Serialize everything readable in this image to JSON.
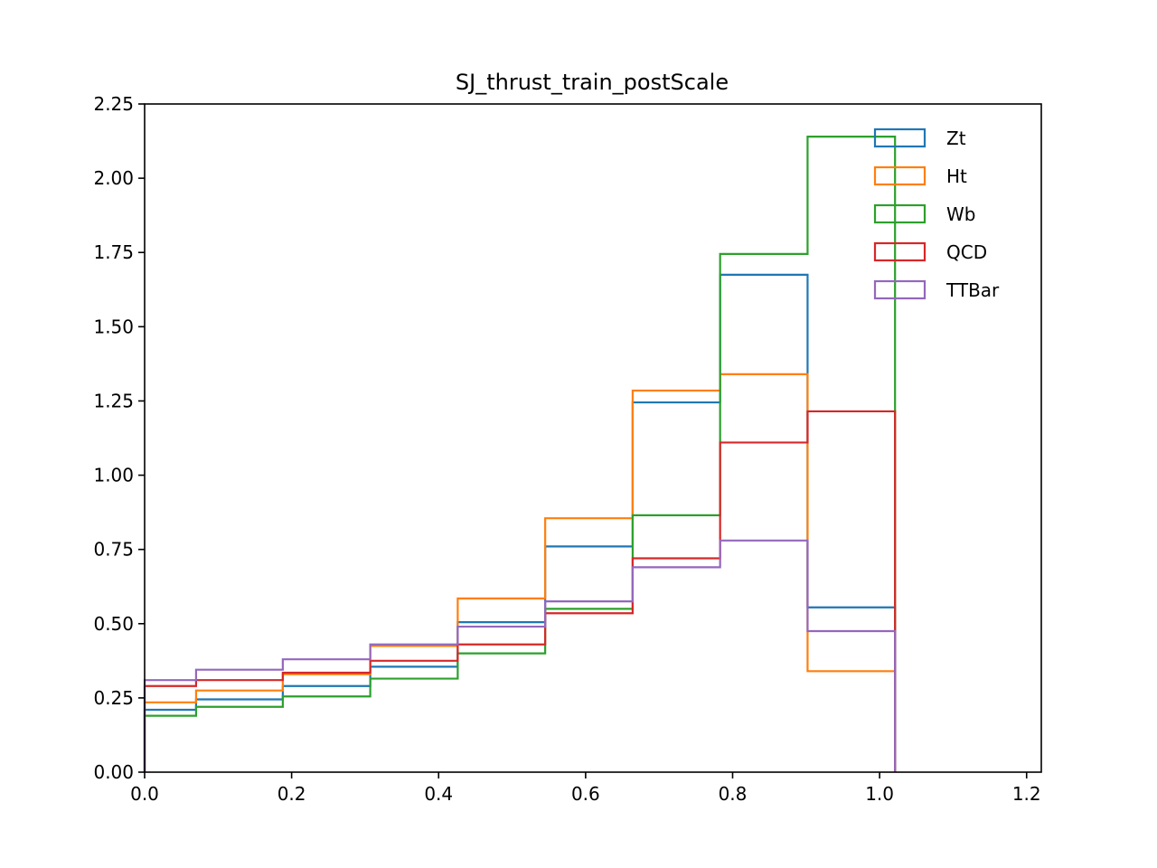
{
  "chart_data": {
    "type": "histogram-step",
    "title": "SJ_thrust_train_postScale",
    "xlabel": "",
    "ylabel": "",
    "xlim": [
      0.0,
      1.22
    ],
    "ylim": [
      0.0,
      2.25
    ],
    "xticks": [
      "0.0",
      "0.2",
      "0.4",
      "0.6",
      "0.8",
      "1.0",
      "1.2"
    ],
    "yticks": [
      "0.00",
      "0.25",
      "0.50",
      "0.75",
      "1.00",
      "1.25",
      "1.50",
      "1.75",
      "2.00",
      "2.25"
    ],
    "grid": false,
    "legend_position": "top-right",
    "bin_edges": [
      0.0,
      0.07,
      0.188,
      0.307,
      0.426,
      0.545,
      0.664,
      0.783,
      0.902,
      1.021
    ],
    "series": [
      {
        "name": "Zt",
        "color": "#1f77b4",
        "values": [
          0.21,
          0.245,
          0.29,
          0.355,
          0.505,
          0.76,
          1.245,
          1.675,
          0.555
        ]
      },
      {
        "name": "Ht",
        "color": "#ff7f0e",
        "values": [
          0.235,
          0.275,
          0.33,
          0.425,
          0.585,
          0.855,
          1.285,
          1.34,
          0.34
        ]
      },
      {
        "name": "Wb",
        "color": "#2ca02c",
        "values": [
          0.19,
          0.22,
          0.255,
          0.315,
          0.4,
          0.55,
          0.865,
          1.745,
          2.14
        ]
      },
      {
        "name": "QCD",
        "color": "#d62728",
        "values": [
          0.29,
          0.31,
          0.335,
          0.375,
          0.43,
          0.535,
          0.72,
          1.11,
          1.215
        ]
      },
      {
        "name": "TTBar",
        "color": "#9467bd",
        "values": [
          0.31,
          0.345,
          0.38,
          0.43,
          0.49,
          0.575,
          0.69,
          0.78,
          0.475
        ]
      }
    ]
  }
}
